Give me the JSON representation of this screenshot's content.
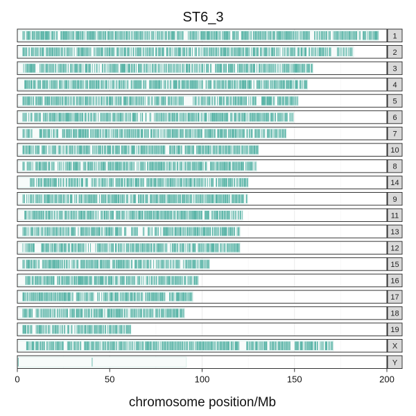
{
  "chart_data": {
    "type": "bar",
    "title": "ST6_3",
    "xlabel": "chromosome position/Mb",
    "ylabel": "",
    "xlim": [
      0,
      200
    ],
    "x_ticks": [
      0,
      50,
      100,
      150,
      200
    ],
    "grid": true,
    "bar_color": "#5cb5a8",
    "panel_border_color": "#333333",
    "strip_fill": "#d9d9d9",
    "categories": [
      "1",
      "2",
      "3",
      "4",
      "5",
      "6",
      "7",
      "10",
      "8",
      "14",
      "9",
      "11",
      "13",
      "12",
      "15",
      "16",
      "17",
      "18",
      "19",
      "X",
      "Y"
    ],
    "values": [
      195.5,
      182,
      160,
      157,
      152,
      149.5,
      145.5,
      130.5,
      129.5,
      125,
      124.5,
      122,
      120.5,
      120.5,
      104,
      98,
      95,
      90.5,
      61.5,
      171,
      91.5
    ],
    "coverage_start": [
      3,
      3,
      3,
      4,
      3,
      3,
      3,
      3,
      3,
      7,
      3,
      4,
      3,
      3,
      3,
      4,
      3,
      3,
      3,
      5,
      0.5
    ],
    "coverage_end": [
      195.5,
      182,
      160,
      157,
      152,
      149.5,
      145.5,
      130.5,
      129.5,
      125,
      124.5,
      122,
      120.5,
      120.5,
      104,
      98,
      95,
      90.5,
      61.5,
      171,
      91.5
    ],
    "gaps": [
      [
        [
          22,
          23
        ],
        [
          90,
          92
        ],
        [
          120,
          121
        ]
      ],
      [
        [
          40,
          41.5
        ],
        [
          170,
          173
        ]
      ],
      [
        [
          10,
          12
        ],
        [
          105,
          107
        ]
      ],
      [
        [
          60,
          61.5
        ]
      ],
      [
        [
          90,
          95
        ],
        [
          130,
          132
        ]
      ],
      [
        [
          70,
          71.5
        ]
      ],
      [
        [
          8,
          12
        ],
        [
          22,
          24
        ]
      ],
      [
        [
          80,
          81.5
        ]
      ],
      [
        [
          20,
          22
        ]
      ],
      [
        [
          38,
          40
        ]
      ],
      [
        [
          60,
          61
        ]
      ],
      [
        [
          100,
          101
        ]
      ],
      [
        [
          65,
          68
        ]
      ],
      [
        [
          10,
          13
        ],
        [
          40,
          42
        ]
      ],
      [
        [
          50,
          51.5
        ]
      ],
      [
        [
          20,
          21.5
        ]
      ],
      [
        [
          80,
          82
        ]
      ],
      [
        [
          60,
          61
        ]
      ],
      [
        [
          8,
          10
        ],
        [
          30,
          31
        ]
      ],
      [
        [
          25,
          27
        ],
        [
          120,
          124
        ],
        [
          148,
          150
        ]
      ],
      [
        [
          4,
          20
        ],
        [
          23,
          40
        ],
        [
          46,
          88
        ]
      ]
    ]
  }
}
